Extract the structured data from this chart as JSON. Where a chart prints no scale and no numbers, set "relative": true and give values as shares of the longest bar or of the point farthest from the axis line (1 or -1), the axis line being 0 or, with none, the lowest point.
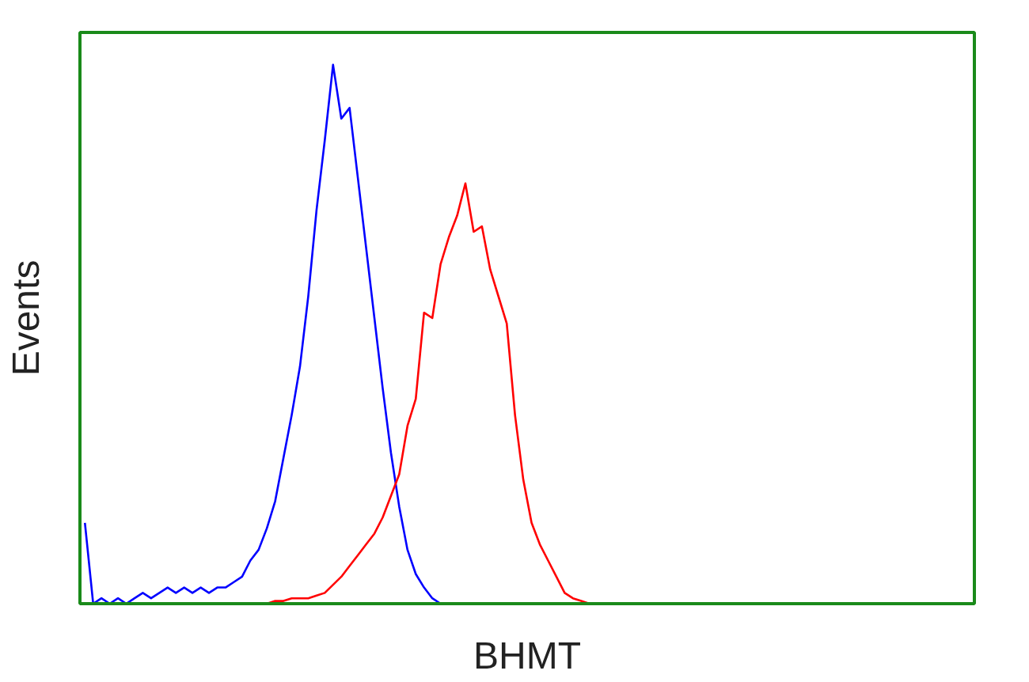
{
  "chart_data": {
    "type": "line",
    "xlabel": "BHMT",
    "ylabel": "Events",
    "relative": true,
    "categories": [
      null,
      null,
      null,
      null,
      null,
      null,
      null,
      null,
      null,
      null,
      null,
      null,
      null,
      null,
      null,
      null,
      null,
      null,
      null,
      null,
      null,
      null,
      null,
      null,
      null,
      null,
      null,
      null,
      null,
      null,
      null,
      null,
      null,
      null,
      null,
      null,
      null,
      null,
      null,
      null,
      null,
      null,
      null,
      null,
      null,
      null,
      null,
      null,
      null,
      null,
      null,
      null,
      null,
      null,
      null,
      null,
      null,
      null,
      null,
      null,
      null,
      null,
      null,
      null,
      null,
      null,
      null,
      null,
      null,
      null,
      null,
      null,
      null,
      null,
      null,
      null,
      null,
      null,
      null,
      null,
      null,
      null,
      null,
      null,
      null,
      null,
      null,
      null,
      null,
      null,
      null,
      null,
      null,
      null,
      null,
      null,
      null,
      null,
      null,
      null,
      null,
      null,
      null,
      null,
      null,
      null,
      null,
      null
    ],
    "series": [
      {
        "color": "#0000ff",
        "values": [
          0.15,
          0,
          0.01,
          0,
          0.01,
          0,
          0.01,
          0.02,
          0.01,
          0.02,
          0.03,
          0.02,
          0.03,
          0.02,
          0.03,
          0.02,
          0.03,
          0.03,
          0.04,
          0.05,
          0.08,
          0.1,
          0.14,
          0.19,
          0.27,
          0.35,
          0.44,
          0.57,
          0.73,
          0.86,
          1.0,
          0.9,
          0.92,
          0.79,
          0.66,
          0.53,
          0.4,
          0.28,
          0.18,
          0.1,
          0.055,
          0.03,
          0.01,
          0,
          null,
          null,
          null,
          null,
          null,
          null,
          null,
          null,
          null,
          null,
          null,
          null,
          null,
          null,
          null,
          null,
          null,
          null,
          null,
          null,
          null,
          null,
          null,
          null,
          null,
          null,
          null,
          null,
          null,
          null,
          null,
          null,
          null,
          null,
          null,
          null,
          null,
          null,
          null,
          null,
          null,
          null,
          null,
          null,
          null,
          null,
          null,
          null,
          null,
          null,
          null,
          null,
          null,
          null,
          null,
          null,
          null,
          null,
          null,
          null,
          null,
          null,
          null,
          null
        ]
      },
      {
        "color": "#ff0000",
        "values": [
          null,
          null,
          null,
          null,
          null,
          null,
          null,
          null,
          null,
          null,
          null,
          null,
          null,
          null,
          null,
          null,
          null,
          null,
          null,
          null,
          0,
          0,
          0,
          0.005,
          0.005,
          0.01,
          0.01,
          0.01,
          0.015,
          0.02,
          0.035,
          0.05,
          0.07,
          0.09,
          0.11,
          0.13,
          0.16,
          0.2,
          0.24,
          0.33,
          0.38,
          0.54,
          0.53,
          0.63,
          0.68,
          0.72,
          0.78,
          0.69,
          0.7,
          0.62,
          0.57,
          0.52,
          0.35,
          0.23,
          0.15,
          0.11,
          0.08,
          0.05,
          0.02,
          0.01,
          0.005,
          0,
          null,
          null,
          null,
          null,
          null,
          null,
          null,
          null,
          null,
          null,
          null,
          null,
          null,
          null,
          null,
          null,
          null,
          null,
          null,
          null,
          null,
          null,
          null,
          null,
          null,
          null,
          null,
          null,
          null,
          null,
          null,
          null,
          null,
          null,
          null,
          null,
          null,
          null,
          null,
          null,
          null,
          null,
          null,
          null,
          null,
          null
        ]
      }
    ]
  }
}
